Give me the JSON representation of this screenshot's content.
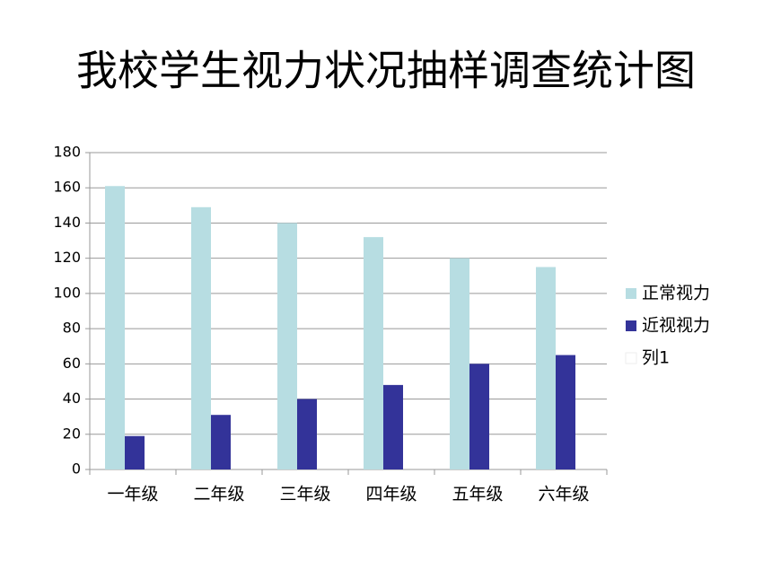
{
  "chart_data": {
    "type": "bar",
    "title": "我校学生视力状况抽样调查统计图",
    "categories": [
      "一年级",
      "二年级",
      "三年级",
      "四年级",
      "五年级",
      "六年级"
    ],
    "series": [
      {
        "name": "正常视力",
        "color": "#b7dde2",
        "values": [
          161,
          149,
          140,
          132,
          120,
          115
        ]
      },
      {
        "name": "近视视力",
        "color": "#333399",
        "values": [
          19,
          31,
          40,
          48,
          60,
          65
        ]
      },
      {
        "name": "列1",
        "color": "#ffffff",
        "values": [
          null,
          null,
          null,
          null,
          null,
          null
        ]
      }
    ],
    "ylim": [
      0,
      180
    ],
    "yticks": [
      0,
      20,
      40,
      60,
      80,
      100,
      120,
      140,
      160,
      180
    ],
    "grid": true,
    "legend": "right"
  }
}
